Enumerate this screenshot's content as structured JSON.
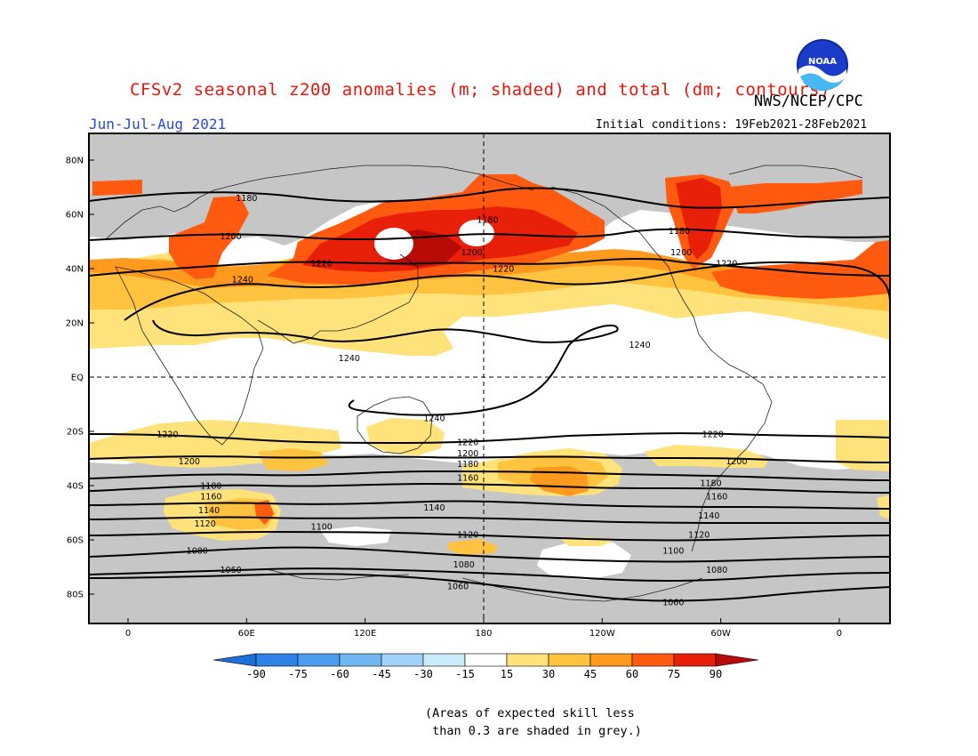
{
  "header": {
    "title": "CFSv2 seasonal z200 anomalies (m; shaded) and total (dm; contours)",
    "agency": "NWS/NCEP/CPC",
    "season": "Jun-Jul-Aug 2021",
    "initial_conditions": "Initial conditions: 19Feb2021-28Feb2021",
    "logo_text": "NOAA"
  },
  "map": {
    "lat_labels": [
      "80N",
      "60N",
      "40N",
      "20N",
      "EQ",
      "20S",
      "40S",
      "60S",
      "80S"
    ],
    "lon_labels": [
      "0",
      "60E",
      "120E",
      "180",
      "120W",
      "60W",
      "0"
    ],
    "contour_labels": [
      {
        "text": "1180",
        "lon": 60,
        "lat": 66
      },
      {
        "text": "1200",
        "lon": 52,
        "lat": 52
      },
      {
        "text": "1220",
        "lon": 98,
        "lat": 42
      },
      {
        "text": "1240",
        "lon": 58,
        "lat": 36
      },
      {
        "text": "1180",
        "lon": 182,
        "lat": 58
      },
      {
        "text": "1200",
        "lon": 174,
        "lat": 46
      },
      {
        "text": "1220",
        "lon": 190,
        "lat": 40
      },
      {
        "text": "1240",
        "lon": 259,
        "lat": 12
      },
      {
        "text": "1240",
        "lon": 112,
        "lat": 7
      },
      {
        "text": "1240",
        "lon": 155,
        "lat": -15
      },
      {
        "text": "1180",
        "lon": 279,
        "lat": 54
      },
      {
        "text": "1200",
        "lon": 280,
        "lat": 46
      },
      {
        "text": "1220",
        "lon": 303,
        "lat": 42
      },
      {
        "text": "1220",
        "lon": 20,
        "lat": -21
      },
      {
        "text": "1200",
        "lon": 31,
        "lat": -31
      },
      {
        "text": "1220",
        "lon": 172,
        "lat": -24
      },
      {
        "text": "1200",
        "lon": 172,
        "lat": -28
      },
      {
        "text": "1180",
        "lon": 172,
        "lat": -32
      },
      {
        "text": "1160",
        "lon": 172,
        "lat": -37
      },
      {
        "text": "1140",
        "lon": 155,
        "lat": -48
      },
      {
        "text": "1120",
        "lon": 172,
        "lat": -58
      },
      {
        "text": "1100",
        "lon": 98,
        "lat": -55
      },
      {
        "text": "1080",
        "lon": 170,
        "lat": -69
      },
      {
        "text": "1060",
        "lon": 167,
        "lat": -77
      },
      {
        "text": "1220",
        "lon": 296,
        "lat": -21
      },
      {
        "text": "1200",
        "lon": 308,
        "lat": -31
      },
      {
        "text": "1180",
        "lon": 295,
        "lat": -39
      },
      {
        "text": "1160",
        "lon": 298,
        "lat": -44
      },
      {
        "text": "1140",
        "lon": 294,
        "lat": -51
      },
      {
        "text": "1120",
        "lon": 289,
        "lat": -58
      },
      {
        "text": "1100",
        "lon": 276,
        "lat": -64
      },
      {
        "text": "1080",
        "lon": 298,
        "lat": -71
      },
      {
        "text": "1060",
        "lon": 276,
        "lat": -83
      },
      {
        "text": "1180",
        "lon": 42,
        "lat": -40
      },
      {
        "text": "1160",
        "lon": 42,
        "lat": -44
      },
      {
        "text": "1140",
        "lon": 41,
        "lat": -49
      },
      {
        "text": "1120",
        "lon": 39,
        "lat": -54
      },
      {
        "text": "1080",
        "lon": 35,
        "lat": -64
      },
      {
        "text": "1060",
        "lon": 52,
        "lat": -71
      }
    ]
  },
  "colorbar": {
    "labels": [
      "-90",
      "-75",
      "-60",
      "-45",
      "-30",
      "-15",
      "15",
      "30",
      "45",
      "60",
      "75",
      "90"
    ],
    "colors": [
      "#1e6fd8",
      "#2f82e6",
      "#4c9cee",
      "#6fb6f2",
      "#9fd2f6",
      "#c8ecf8",
      "#ffffff",
      "#ffe27a",
      "#ffc340",
      "#ff9a1e",
      "#ff5a10",
      "#e8200a",
      "#b80a06"
    ]
  },
  "footnote": {
    "line1": "(Areas of expected skill less",
    "line2": " than 0.3 are shaded in grey.)"
  }
}
